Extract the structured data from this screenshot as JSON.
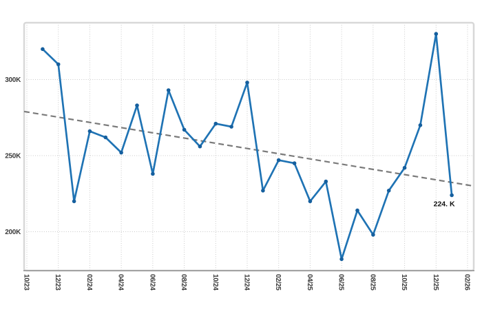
{
  "page": {
    "background": "#ffffff"
  },
  "chart_data": {
    "type": "line",
    "title": "",
    "legend_position": "none",
    "grid": "dotted-both-axes",
    "marker": "circle",
    "x": [
      "11/23",
      "12/23",
      "01/24",
      "02/24",
      "03/24",
      "04/24",
      "05/24",
      "06/24",
      "07/24",
      "08/24",
      "09/24",
      "10/24",
      "11/24",
      "12/24",
      "01/25",
      "02/25",
      "03/25",
      "04/25",
      "05/25",
      "06/25",
      "07/25",
      "08/25",
      "09/25",
      "10/25",
      "11/25",
      "12/25",
      "01/26"
    ],
    "values": [
      320,
      310,
      220,
      266,
      262,
      252,
      283,
      238,
      293,
      267,
      256,
      271,
      269,
      298,
      227,
      247,
      245,
      220,
      233,
      182,
      214,
      198,
      227,
      242,
      270,
      330,
      224
    ],
    "units": "K",
    "x_tick_labels": [
      "10/23",
      "12/23",
      "02/24",
      "04/24",
      "06/24",
      "08/24",
      "10/24",
      "12/24",
      "02/25",
      "04/25",
      "06/25",
      "08/25",
      "10/25",
      "12/25",
      "02/26"
    ],
    "y_tick_labels": [
      "200K",
      "250K",
      "300K"
    ],
    "y_tick_values": [
      200,
      250,
      300
    ],
    "ylim_display": [
      174,
      337
    ],
    "xlabel": "",
    "ylabel": "",
    "trendline": {
      "style": "dashed-linear",
      "start_value": 279,
      "end_value": 230
    },
    "annotation": {
      "text": "224. K",
      "point": "01/26"
    },
    "colors": {
      "line": "#1f73b4",
      "marker": "#155f9e",
      "trend": "#7a7a7a",
      "grid": "#c9c9c9",
      "frame": "#d8d8d8",
      "axis": "#a3a3a3",
      "tick_text": "#3c3c3c",
      "annotation_text": "#111111",
      "background": "#ffffff"
    }
  }
}
